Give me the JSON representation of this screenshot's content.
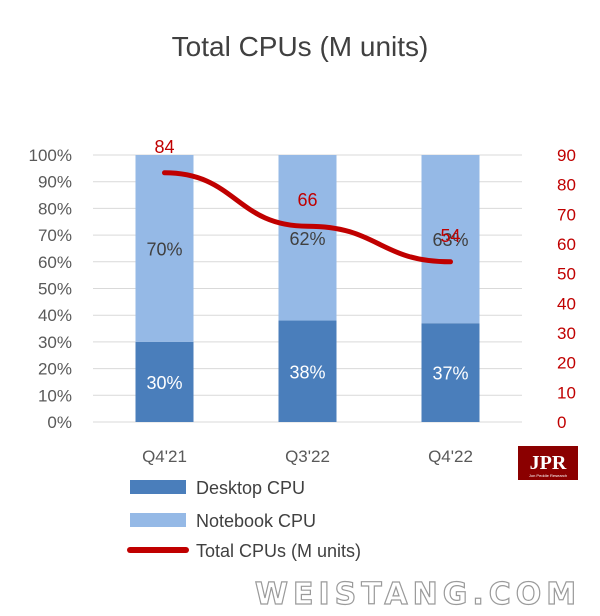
{
  "chart_data": {
    "type": "bar",
    "title": "Total CPUs (M units)",
    "categories": [
      "Q4'21",
      "Q3'22",
      "Q4'22"
    ],
    "series": [
      {
        "name": "Desktop CPU",
        "type": "bar",
        "stacked": true,
        "axis": "left",
        "values": [
          30,
          38,
          37
        ],
        "labels": [
          "30%",
          "38%",
          "37%"
        ],
        "color": "#4a7ebb"
      },
      {
        "name": "Notebook CPU",
        "type": "bar",
        "stacked": true,
        "axis": "left",
        "values": [
          70,
          62,
          63
        ],
        "labels": [
          "70%",
          "62%",
          "63%"
        ],
        "color": "#95b9e6"
      },
      {
        "name": "Total CPUs (M units)",
        "type": "line",
        "axis": "right",
        "values": [
          84,
          66,
          54
        ],
        "labels": [
          "84",
          "66",
          "54"
        ],
        "color": "#c00000"
      }
    ],
    "y_left": {
      "min": 0,
      "max": 100,
      "step": 10,
      "format": "percent",
      "tick_labels": [
        "0%",
        "10%",
        "20%",
        "30%",
        "40%",
        "50%",
        "60%",
        "70%",
        "80%",
        "90%",
        "100%"
      ]
    },
    "y_right": {
      "min": 0,
      "max": 90,
      "step": 10,
      "tick_labels": [
        "0",
        "10",
        "20",
        "30",
        "40",
        "50",
        "60",
        "70",
        "80",
        "90"
      ],
      "color": "#c00000"
    },
    "grid": true,
    "legend": "bottom-left"
  },
  "logo": {
    "main": "JPR",
    "sub": "Jon Peddie Research"
  },
  "watermark": "WEISTANG.COM"
}
